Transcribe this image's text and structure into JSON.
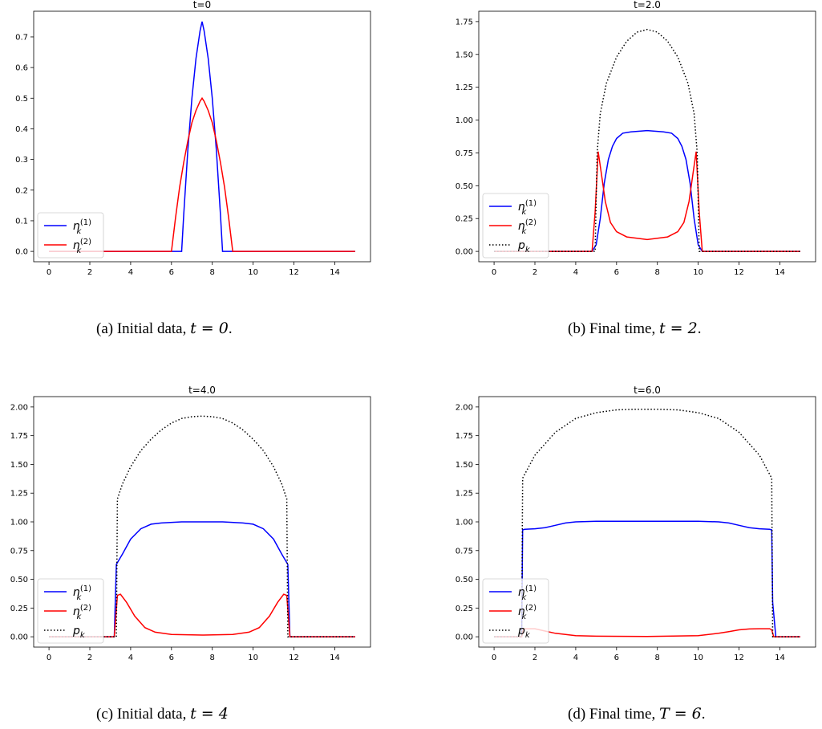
{
  "colors": {
    "n1": "#0000ff",
    "n2": "#ff0000",
    "p": "#000000"
  },
  "legend": {
    "n1": "n",
    "n1_sub": "k",
    "n1_sup": "(1)",
    "n2": "n",
    "n2_sub": "k",
    "n2_sup": "(2)",
    "p": "p",
    "p_sub": "k"
  },
  "captions": [
    {
      "prefix": "(a)  Initial data, ",
      "math": "t = 0",
      "suffix": "."
    },
    {
      "prefix": "(b)  Final time, ",
      "math": "t = 2",
      "suffix": "."
    },
    {
      "prefix": "(c)  Initial data, ",
      "math": "t = 4",
      "suffix": ""
    },
    {
      "prefix": "(d)  Final time, ",
      "math": "T = 6",
      "suffix": "."
    }
  ],
  "chart_data": [
    {
      "type": "line",
      "title": "t=0",
      "xlim": [
        0,
        15
      ],
      "ylim": [
        0,
        0.75
      ],
      "xticks": [
        0,
        2,
        4,
        6,
        8,
        10,
        12,
        14
      ],
      "yticks": [
        "0.0",
        "0.1",
        "0.2",
        "0.3",
        "0.4",
        "0.5",
        "0.6",
        "0.7"
      ],
      "grid": false,
      "legend_position": "lower-left",
      "series": [
        {
          "name": "n1",
          "color": "#0000ff",
          "dash": "solid",
          "x": [
            0,
            6.5,
            6.6,
            6.8,
            7.0,
            7.2,
            7.4,
            7.5,
            7.6,
            7.8,
            8.0,
            8.2,
            8.4,
            8.5,
            15
          ],
          "y": [
            0,
            0,
            0.12,
            0.33,
            0.5,
            0.63,
            0.72,
            0.75,
            0.72,
            0.63,
            0.5,
            0.33,
            0.12,
            0,
            0
          ]
        },
        {
          "name": "n2",
          "color": "#ff0000",
          "dash": "solid",
          "x": [
            0,
            6.0,
            6.2,
            6.4,
            6.6,
            6.8,
            7.0,
            7.2,
            7.4,
            7.5,
            7.6,
            7.8,
            8.0,
            8.2,
            8.4,
            8.6,
            8.8,
            9.0,
            15
          ],
          "y": [
            0,
            0,
            0.11,
            0.21,
            0.29,
            0.36,
            0.42,
            0.46,
            0.49,
            0.5,
            0.49,
            0.46,
            0.42,
            0.36,
            0.29,
            0.21,
            0.11,
            0,
            0
          ]
        }
      ]
    },
    {
      "type": "line",
      "title": "t=2.0",
      "xlim": [
        0,
        15
      ],
      "ylim": [
        0,
        1.75
      ],
      "xticks": [
        0,
        2,
        4,
        6,
        8,
        10,
        12,
        14
      ],
      "yticks": [
        "0.00",
        "0.25",
        "0.50",
        "0.75",
        "1.00",
        "1.25",
        "1.50",
        "1.75"
      ],
      "grid": false,
      "legend_position": "lower-left",
      "series": [
        {
          "name": "n1",
          "color": "#0000ff",
          "dash": "solid",
          "x": [
            0,
            4.8,
            5.0,
            5.2,
            5.4,
            5.6,
            5.8,
            6.0,
            6.3,
            6.7,
            7.5,
            8.3,
            8.7,
            9.0,
            9.2,
            9.4,
            9.6,
            9.8,
            10.0,
            10.2,
            10.4,
            15
          ],
          "y": [
            0,
            0,
            0.05,
            0.25,
            0.52,
            0.7,
            0.8,
            0.86,
            0.9,
            0.91,
            0.92,
            0.91,
            0.9,
            0.86,
            0.8,
            0.7,
            0.52,
            0.25,
            0.05,
            0,
            0,
            0
          ]
        },
        {
          "name": "n2",
          "color": "#ff0000",
          "dash": "solid",
          "x": [
            0,
            4.8,
            4.95,
            5.1,
            5.25,
            5.45,
            5.7,
            6.0,
            6.5,
            7.5,
            8.5,
            9.0,
            9.3,
            9.55,
            9.75,
            9.9,
            10.05,
            10.2,
            15
          ],
          "y": [
            0,
            0,
            0.3,
            0.76,
            0.6,
            0.38,
            0.22,
            0.15,
            0.11,
            0.09,
            0.11,
            0.15,
            0.22,
            0.38,
            0.6,
            0.76,
            0.3,
            0,
            0
          ]
        },
        {
          "name": "p",
          "color": "#000000",
          "dash": "dotted",
          "x": [
            0,
            4.95,
            5.05,
            5.2,
            5.5,
            6.0,
            6.5,
            7.0,
            7.5,
            8.0,
            8.5,
            9.0,
            9.5,
            9.8,
            9.95,
            10.05,
            15
          ],
          "y": [
            0,
            0,
            0.75,
            1.05,
            1.28,
            1.48,
            1.6,
            1.67,
            1.69,
            1.67,
            1.6,
            1.48,
            1.28,
            1.05,
            0.75,
            0,
            0
          ]
        }
      ]
    },
    {
      "type": "line",
      "title": "t=4.0",
      "xlim": [
        0,
        15
      ],
      "ylim": [
        0,
        2.0
      ],
      "xticks": [
        0,
        2,
        4,
        6,
        8,
        10,
        12,
        14
      ],
      "yticks": [
        "0.00",
        "0.25",
        "0.50",
        "0.75",
        "1.00",
        "1.25",
        "1.50",
        "1.75",
        "2.00"
      ],
      "grid": false,
      "legend_position": "lower-left",
      "series": [
        {
          "name": "n1",
          "color": "#0000ff",
          "dash": "solid",
          "x": [
            0,
            3.2,
            3.3,
            3.4,
            3.6,
            4.0,
            4.5,
            5.0,
            5.5,
            6.5,
            7.5,
            8.5,
            9.5,
            10.0,
            10.5,
            11.0,
            11.4,
            11.6,
            11.7,
            11.8,
            15
          ],
          "y": [
            0,
            0,
            0.63,
            0.66,
            0.72,
            0.85,
            0.94,
            0.98,
            0.99,
            1.0,
            1.0,
            1.0,
            0.99,
            0.98,
            0.94,
            0.85,
            0.72,
            0.66,
            0.63,
            0,
            0
          ]
        },
        {
          "name": "n2",
          "color": "#ff0000",
          "dash": "solid",
          "x": [
            0,
            3.2,
            3.35,
            3.5,
            3.8,
            4.2,
            4.7,
            5.2,
            6.0,
            7.5,
            9.0,
            9.8,
            10.3,
            10.8,
            11.2,
            11.5,
            11.65,
            11.8,
            15
          ],
          "y": [
            0,
            0,
            0.36,
            0.37,
            0.3,
            0.18,
            0.08,
            0.04,
            0.02,
            0.015,
            0.02,
            0.04,
            0.08,
            0.18,
            0.3,
            0.37,
            0.36,
            0,
            0
          ]
        },
        {
          "name": "p",
          "color": "#000000",
          "dash": "dotted",
          "x": [
            0,
            3.3,
            3.35,
            3.6,
            4.0,
            4.5,
            5.0,
            5.5,
            6.0,
            6.5,
            7.0,
            7.5,
            8.0,
            8.5,
            9.0,
            9.5,
            10.0,
            10.5,
            11.0,
            11.4,
            11.65,
            11.7,
            15
          ],
          "y": [
            0,
            0,
            1.2,
            1.33,
            1.48,
            1.62,
            1.72,
            1.8,
            1.86,
            1.9,
            1.915,
            1.92,
            1.915,
            1.9,
            1.86,
            1.8,
            1.72,
            1.62,
            1.48,
            1.33,
            1.2,
            0,
            0
          ]
        }
      ]
    },
    {
      "type": "line",
      "title": "t=6.0",
      "xlim": [
        0,
        15
      ],
      "ylim": [
        0,
        2.0
      ],
      "xticks": [
        0,
        2,
        4,
        6,
        8,
        10,
        12,
        14
      ],
      "yticks": [
        "0.00",
        "0.25",
        "0.50",
        "0.75",
        "1.00",
        "1.25",
        "1.50",
        "1.75",
        "2.00"
      ],
      "grid": false,
      "legend_position": "lower-left",
      "series": [
        {
          "name": "n1",
          "color": "#0000ff",
          "dash": "solid",
          "x": [
            0,
            1.35,
            1.4,
            1.5,
            2.0,
            2.5,
            3.0,
            3.5,
            4.0,
            5.0,
            7.5,
            10.0,
            11.0,
            11.5,
            12.0,
            12.5,
            13.0,
            13.5,
            13.6,
            13.65,
            13.8,
            15
          ],
          "y": [
            0,
            0,
            0.93,
            0.935,
            0.94,
            0.95,
            0.97,
            0.99,
            1.0,
            1.005,
            1.005,
            1.005,
            1.0,
            0.99,
            0.97,
            0.95,
            0.94,
            0.935,
            0.93,
            0.3,
            0,
            0
          ]
        },
        {
          "name": "n2",
          "color": "#ff0000",
          "dash": "solid",
          "x": [
            0,
            1.35,
            1.45,
            2.0,
            2.5,
            3.0,
            4.0,
            5.0,
            7.5,
            10.0,
            11.0,
            11.5,
            12.0,
            12.5,
            13.0,
            13.5,
            13.6,
            13.7,
            15
          ],
          "y": [
            0,
            0,
            0.07,
            0.07,
            0.05,
            0.03,
            0.01,
            0.005,
            0.002,
            0.01,
            0.03,
            0.045,
            0.06,
            0.068,
            0.07,
            0.07,
            0.06,
            0,
            0
          ]
        },
        {
          "name": "p",
          "color": "#000000",
          "dash": "dotted",
          "x": [
            0,
            1.35,
            1.4,
            2.0,
            3.0,
            4.0,
            5.0,
            6.0,
            7.0,
            7.5,
            8.0,
            9.0,
            10.0,
            11.0,
            12.0,
            13.0,
            13.6,
            13.65,
            15
          ],
          "y": [
            0,
            0,
            1.38,
            1.58,
            1.78,
            1.9,
            1.95,
            1.975,
            1.98,
            1.98,
            1.98,
            1.975,
            1.95,
            1.9,
            1.78,
            1.58,
            1.38,
            0,
            0
          ]
        }
      ]
    }
  ]
}
